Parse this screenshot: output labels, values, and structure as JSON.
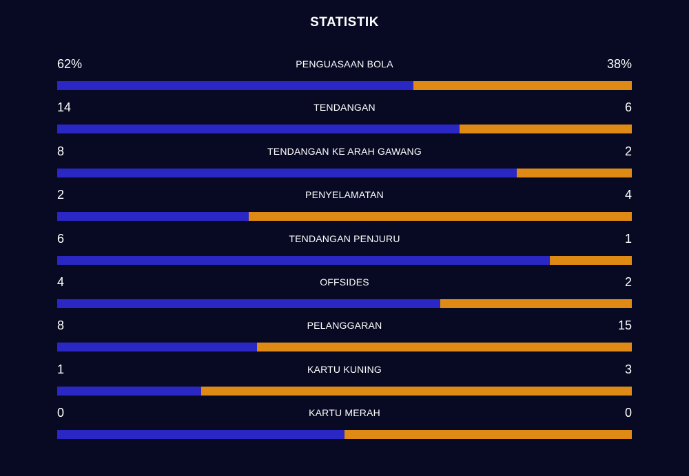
{
  "title": "STATISTIK",
  "colors": {
    "background": "#070a22",
    "home": "#2a27c4",
    "away": "#e08a16"
  },
  "chart_data": {
    "type": "bar",
    "categories": [
      "PENGUASAAN BOLA",
      "TENDANGAN",
      "TENDANGAN KE ARAH GAWANG",
      "PENYELAMATAN",
      "TENDANGAN PENJURU",
      "OFFSIDES",
      "PELANGGARAN",
      "KARTU KUNING",
      "KARTU MERAH"
    ],
    "home_display": [
      "62%",
      "14",
      "8",
      "2",
      "6",
      "4",
      "8",
      "1",
      "0"
    ],
    "away_display": [
      "38%",
      "6",
      "2",
      "4",
      "1",
      "2",
      "15",
      "3",
      "0"
    ],
    "series": [
      {
        "values": [
          62,
          14,
          8,
          2,
          6,
          4,
          8,
          1,
          0
        ]
      },
      {
        "values": [
          38,
          6,
          2,
          4,
          1,
          2,
          15,
          3,
          0
        ]
      }
    ],
    "stacked": true,
    "normalized": true
  }
}
